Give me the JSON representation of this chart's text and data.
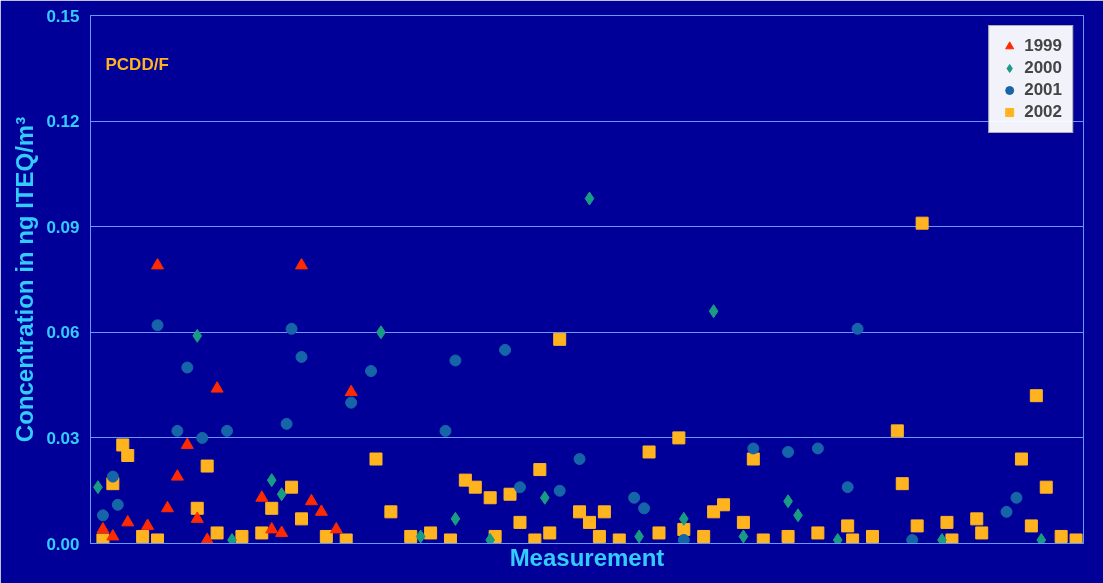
{
  "chart_data": {
    "type": "scatter",
    "xlabel": "Measurement",
    "ylabel": "Concentration in ng ITEQ/m³",
    "annotations": [
      "PCDD/F"
    ],
    "ylim": [
      0,
      0.15
    ],
    "yticks": [
      {
        "value": 0,
        "label": "0.00"
      },
      {
        "value": 0.03,
        "label": "0.03"
      },
      {
        "value": 0.06,
        "label": "0.06"
      },
      {
        "value": 0.09,
        "label": "0.09"
      },
      {
        "value": 0.12,
        "label": "0.12"
      },
      {
        "value": 0.15,
        "label": "0.15"
      }
    ],
    "grid": "y",
    "legend": "top right",
    "tick_labels": "y",
    "categories": [
      null,
      null,
      null,
      null,
      null,
      null,
      null,
      null,
      null,
      null,
      null,
      null,
      null,
      null,
      null,
      null,
      null,
      null,
      null,
      null,
      null,
      null,
      null,
      null,
      null,
      null,
      null,
      null,
      null,
      null,
      null,
      null,
      null,
      null,
      null,
      null,
      null,
      null,
      null,
      null,
      null,
      null,
      null,
      null,
      null,
      null,
      null,
      null,
      null,
      null,
      null,
      null,
      null,
      null,
      null,
      null,
      null,
      null,
      null,
      null,
      null,
      null,
      null,
      null,
      null,
      null,
      null,
      null,
      null,
      null,
      null,
      null,
      null,
      null,
      null,
      null,
      null,
      null,
      null,
      null,
      null,
      null,
      null,
      null,
      null,
      null,
      null,
      null,
      null,
      null,
      null,
      null,
      null,
      null,
      null,
      null,
      null,
      null,
      null,
      null,
      null,
      null,
      null,
      null,
      null,
      null,
      null,
      null,
      null,
      null,
      null,
      null,
      null,
      null,
      null,
      null,
      null,
      null,
      null,
      null,
      null,
      null,
      null,
      null,
      null,
      null,
      null,
      null,
      null,
      null,
      null,
      null,
      null,
      null,
      null,
      null,
      null,
      null,
      null,
      null,
      null,
      null,
      null,
      null,
      null,
      null,
      null,
      null,
      null,
      null,
      null,
      null,
      null,
      null,
      null,
      null,
      null,
      null,
      null,
      null,
      null,
      null,
      null,
      null,
      null,
      null,
      null,
      null,
      null,
      null,
      null,
      null,
      null,
      null,
      null,
      null,
      null,
      null,
      null,
      null,
      null,
      null,
      null,
      null,
      null,
      null,
      null,
      null,
      null,
      null,
      null,
      null,
      null,
      null,
      null,
      null,
      null,
      null,
      null,
      null
    ],
    "series": [
      {
        "name": "1999",
        "color": "#ff2a00",
        "marker": "triangle",
        "values": [
          null,
          null,
          0.004,
          null,
          0.002,
          null,
          null,
          0.006,
          null,
          null,
          null,
          0.005,
          null,
          0.079,
          null,
          0.01,
          null,
          0.019,
          null,
          0.028,
          null,
          0.007,
          null,
          0.001,
          null,
          0.044,
          null,
          null,
          null,
          null,
          null,
          null,
          null,
          null,
          0.013,
          null,
          0.004,
          null,
          0.003,
          null,
          null,
          null,
          0.079,
          null,
          0.012,
          null,
          0.009,
          null,
          null,
          0.004,
          null,
          null,
          0.043,
          null,
          null,
          null,
          null,
          null,
          null,
          null,
          null,
          null,
          null,
          null,
          null,
          null,
          null,
          null,
          null,
          null,
          null,
          null,
          null,
          null,
          null,
          null,
          null,
          null,
          null,
          null,
          null,
          null,
          null,
          null,
          null,
          null,
          null,
          null,
          null,
          null,
          null,
          null,
          null,
          null,
          null,
          null,
          null,
          null,
          null,
          null,
          null,
          null,
          null,
          null,
          null,
          null,
          null,
          null,
          null,
          null,
          null,
          null,
          null,
          null,
          null,
          null,
          null,
          null,
          null,
          null,
          null,
          null,
          null,
          null,
          null,
          null,
          null,
          null,
          null,
          null,
          null,
          null,
          null,
          null,
          null,
          null,
          null,
          null,
          null,
          null,
          null,
          null,
          null,
          null,
          null,
          null,
          null,
          null,
          null,
          null,
          null,
          null,
          null,
          null,
          null,
          null,
          null,
          null,
          null,
          null,
          null,
          null,
          null,
          null,
          null,
          null,
          null,
          null,
          null,
          null,
          null,
          null,
          null,
          null,
          null,
          null,
          null,
          null,
          null,
          null,
          null,
          null,
          null,
          null,
          null,
          null,
          null,
          null,
          null,
          null,
          null,
          null,
          null,
          null,
          null,
          null,
          null,
          null,
          null,
          null
        ]
      },
      {
        "name": "2000",
        "color": "#1a9c84",
        "marker": "diamond",
        "values": [
          null,
          0.016,
          null,
          null,
          null,
          null,
          null,
          null,
          null,
          null,
          null,
          null,
          null,
          null,
          null,
          null,
          null,
          null,
          null,
          null,
          null,
          0.059,
          null,
          null,
          null,
          null,
          null,
          null,
          0.001,
          null,
          null,
          null,
          null,
          null,
          null,
          null,
          0.018,
          null,
          0.014,
          null,
          null,
          null,
          null,
          null,
          null,
          null,
          null,
          null,
          null,
          null,
          null,
          null,
          null,
          null,
          null,
          null,
          null,
          null,
          0.06,
          null,
          null,
          null,
          null,
          null,
          null,
          null,
          0.002,
          null,
          null,
          null,
          null,
          null,
          null,
          0.007,
          null,
          null,
          null,
          null,
          null,
          null,
          0.001,
          null,
          null,
          null,
          null,
          null,
          null,
          null,
          null,
          null,
          null,
          0.013,
          null,
          null,
          null,
          null,
          null,
          null,
          null,
          null,
          0.098,
          null,
          null,
          null,
          null,
          null,
          null,
          null,
          null,
          null,
          0.002,
          null,
          null,
          null,
          null,
          null,
          null,
          null,
          null,
          0.007,
          null,
          null,
          null,
          null,
          null,
          0.066,
          null,
          null,
          null,
          null,
          null,
          0.002,
          null,
          null,
          null,
          null,
          null,
          null,
          null,
          null,
          0.012,
          null,
          0.008,
          null,
          null,
          null,
          null,
          null,
          null,
          null,
          0.001,
          null,
          null,
          null,
          null,
          null,
          null,
          null,
          null,
          null,
          null,
          null,
          null,
          null,
          null,
          null,
          null,
          null,
          null,
          null,
          null,
          0.001,
          null,
          null,
          null,
          null,
          null,
          null,
          null,
          null,
          null,
          null,
          null,
          null,
          null,
          null,
          null,
          null,
          null,
          null,
          null,
          0.001,
          null,
          null,
          null,
          null,
          null,
          null,
          null,
          null
        ]
      },
      {
        "name": "2001",
        "color": "#1565a8",
        "marker": "circle",
        "values": [
          null,
          null,
          0.008,
          null,
          0.019,
          0.011,
          null,
          null,
          null,
          null,
          null,
          null,
          null,
          0.062,
          null,
          null,
          null,
          0.032,
          null,
          0.05,
          null,
          null,
          0.03,
          null,
          null,
          null,
          null,
          0.032,
          null,
          null,
          null,
          null,
          null,
          null,
          null,
          null,
          null,
          null,
          null,
          0.034,
          0.061,
          null,
          0.053,
          null,
          null,
          null,
          null,
          null,
          null,
          null,
          null,
          null,
          0.04,
          null,
          null,
          null,
          0.049,
          null,
          null,
          null,
          null,
          null,
          null,
          null,
          null,
          null,
          null,
          null,
          null,
          null,
          null,
          0.032,
          null,
          0.052,
          null,
          null,
          null,
          null,
          null,
          null,
          null,
          null,
          null,
          0.055,
          null,
          null,
          0.016,
          null,
          null,
          null,
          null,
          null,
          null,
          null,
          0.015,
          null,
          null,
          null,
          0.024,
          null,
          null,
          null,
          null,
          null,
          null,
          null,
          null,
          null,
          null,
          0.013,
          null,
          0.01,
          null,
          null,
          null,
          null,
          null,
          null,
          null,
          0.001,
          null,
          null,
          null,
          null,
          null,
          null,
          null,
          null,
          null,
          null,
          null,
          null,
          null,
          0.027,
          null,
          null,
          null,
          null,
          null,
          null,
          0.026,
          null,
          null,
          null,
          null,
          null,
          0.027,
          null,
          null,
          null,
          null,
          null,
          0.016,
          null,
          0.061,
          null,
          null,
          null,
          null,
          null,
          null,
          null,
          null,
          null,
          null,
          0.001,
          null,
          null,
          null,
          null,
          null,
          null,
          null,
          null,
          null,
          null,
          null,
          null,
          null,
          null,
          null,
          null,
          null,
          null,
          0.009,
          null,
          0.013,
          null,
          null,
          null,
          null,
          null,
          null,
          null,
          null,
          null,
          null,
          null,
          null,
          null
        ]
      },
      {
        "name": "2002",
        "color": "#ffb31f",
        "marker": "square",
        "values": [
          null,
          null,
          0.001,
          null,
          0.017,
          null,
          0.028,
          0.025,
          null,
          null,
          0.002,
          null,
          null,
          0.001,
          null,
          null,
          null,
          null,
          null,
          null,
          null,
          0.01,
          null,
          0.022,
          null,
          0.003,
          null,
          null,
          null,
          null,
          0.002,
          null,
          null,
          null,
          0.003,
          null,
          0.01,
          null,
          null,
          null,
          0.016,
          null,
          0.007,
          null,
          null,
          null,
          null,
          0.002,
          null,
          null,
          null,
          0.001,
          null,
          null,
          null,
          null,
          null,
          0.024,
          null,
          null,
          0.009,
          null,
          null,
          null,
          0.002,
          null,
          null,
          null,
          0.003,
          null,
          null,
          null,
          0.001,
          null,
          null,
          0.018,
          null,
          0.016,
          null,
          null,
          0.013,
          0.002,
          null,
          null,
          0.014,
          null,
          0.006,
          null,
          null,
          0.001,
          0.021,
          null,
          0.003,
          null,
          0.058,
          null,
          null,
          null,
          0.009,
          null,
          0.006,
          null,
          0.002,
          0.009,
          null,
          null,
          0.001,
          null,
          null,
          null,
          null,
          null,
          0.026,
          null,
          0.003,
          null,
          null,
          null,
          0.03,
          0.004,
          null,
          null,
          null,
          0.002,
          null,
          0.009,
          null,
          0.011,
          null,
          null,
          null,
          0.006,
          null,
          0.024,
          null,
          0.001,
          null,
          null,
          null,
          null,
          0.002,
          null,
          null,
          null,
          null,
          null,
          0.003,
          null,
          null,
          null,
          null,
          null,
          0.005,
          0.001,
          null,
          null,
          null,
          0.002,
          null,
          null,
          null,
          null,
          0.032,
          0.017,
          null,
          null,
          0.005,
          0.091,
          null,
          null,
          null,
          null,
          0.006,
          0.001,
          null,
          null,
          null,
          null,
          0.007,
          0.003,
          null,
          null,
          null,
          null,
          null,
          null,
          null,
          0.024,
          null,
          0.005,
          0.042,
          null,
          0.016,
          null,
          null,
          0.002,
          null,
          null,
          0.001,
          null
        ]
      }
    ]
  }
}
